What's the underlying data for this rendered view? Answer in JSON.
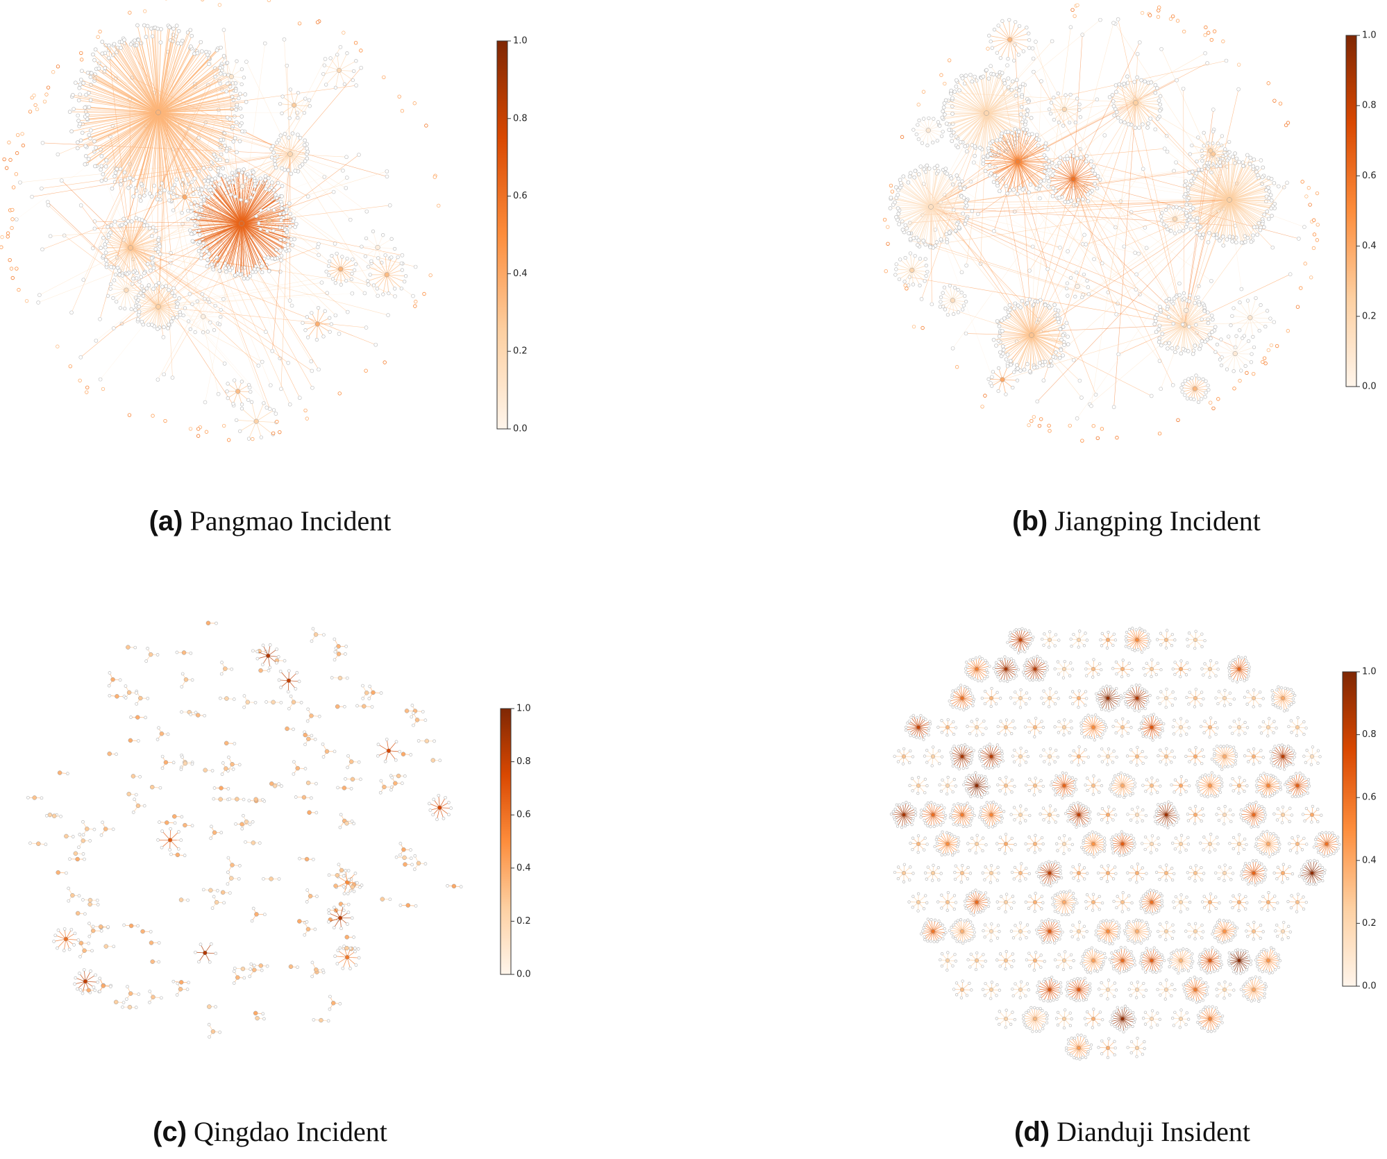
{
  "figure": {
    "panels": [
      {
        "label": "(a)",
        "caption": "Pangmao Incident",
        "colorbar": {
          "lim": [
            0,
            1
          ],
          "ticks": [
            {
              "value": 0,
              "label": "0.0"
            },
            0.2,
            0.4,
            0.6,
            0.8,
            {
              "value": 1,
              "label": "1.0"
            }
          ]
        }
      },
      {
        "label": "(b)",
        "caption": "Jiangping Incident",
        "colorbar": {
          "lim": [
            0,
            1
          ],
          "ticks": [
            {
              "value": 0,
              "label": "0.0"
            },
            0.2,
            0.4,
            0.6,
            0.8,
            {
              "value": 1,
              "label": "1.0"
            }
          ]
        }
      },
      {
        "label": "(c)",
        "caption": "Qingdao Incident",
        "colorbar": {
          "lim": [
            0,
            1
          ],
          "ticks": [
            {
              "value": 0,
              "label": "0.0"
            },
            0.2,
            0.4,
            0.6,
            0.8,
            {
              "value": 1,
              "label": "1.0"
            }
          ]
        }
      },
      {
        "label": "(d)",
        "caption": "Dianduji Insident",
        "colorbar": {
          "lim": [
            0,
            1
          ],
          "ticks": [
            {
              "value": 0,
              "label": "0.0"
            },
            0.2,
            0.4,
            0.6,
            0.8,
            {
              "value": 1,
              "label": "1.0"
            }
          ]
        }
      }
    ]
  }
}
